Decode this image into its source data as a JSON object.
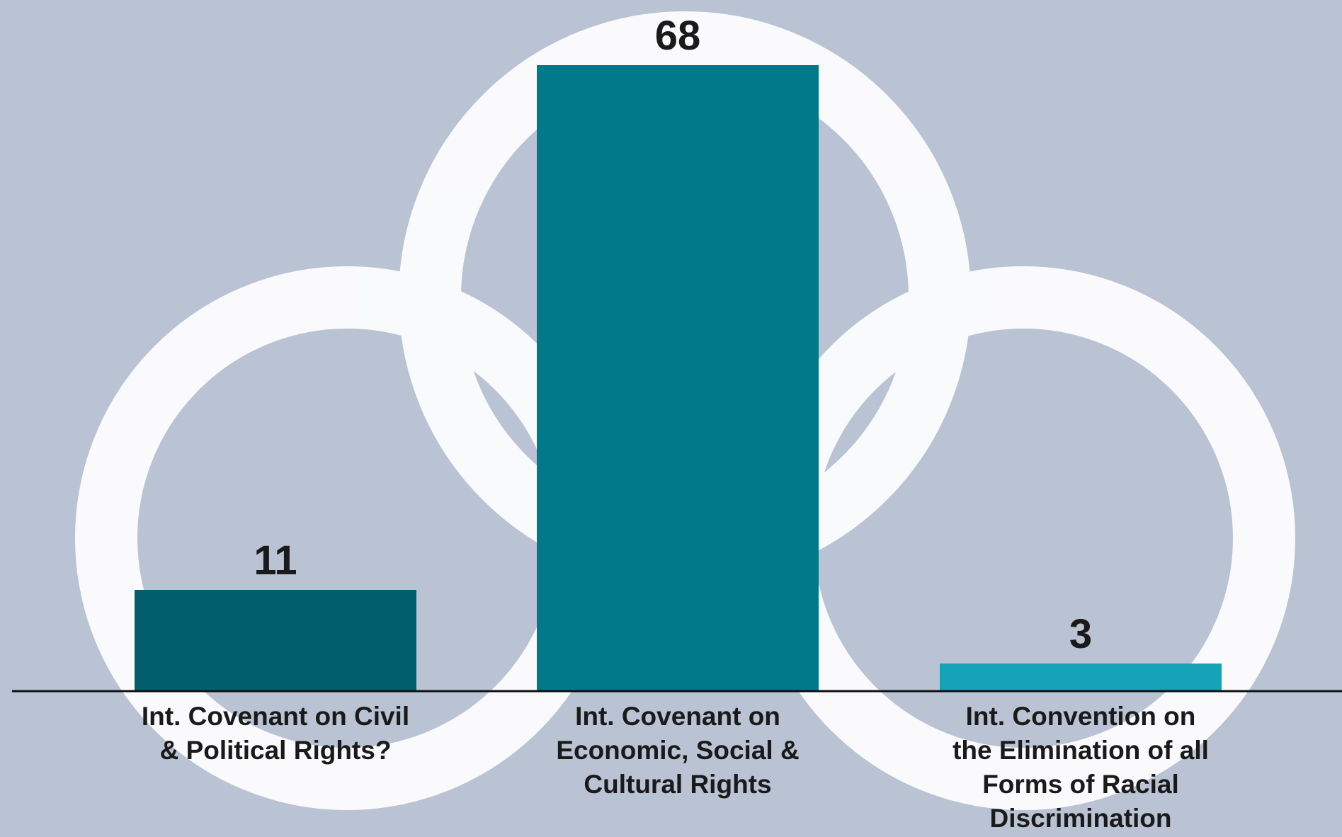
{
  "chart_data": {
    "type": "bar",
    "categories": [
      "Int. Covenant on Civil & Political Rights?",
      "Int. Covenant on Economic, Social & Cultural Rights",
      "Int. Convention on the Elimination of all Forms of Racial Discrimination"
    ],
    "values": [
      11,
      68,
      3
    ],
    "colors": [
      "#005f6b",
      "#007a8a",
      "#16a3b8"
    ]
  }
}
